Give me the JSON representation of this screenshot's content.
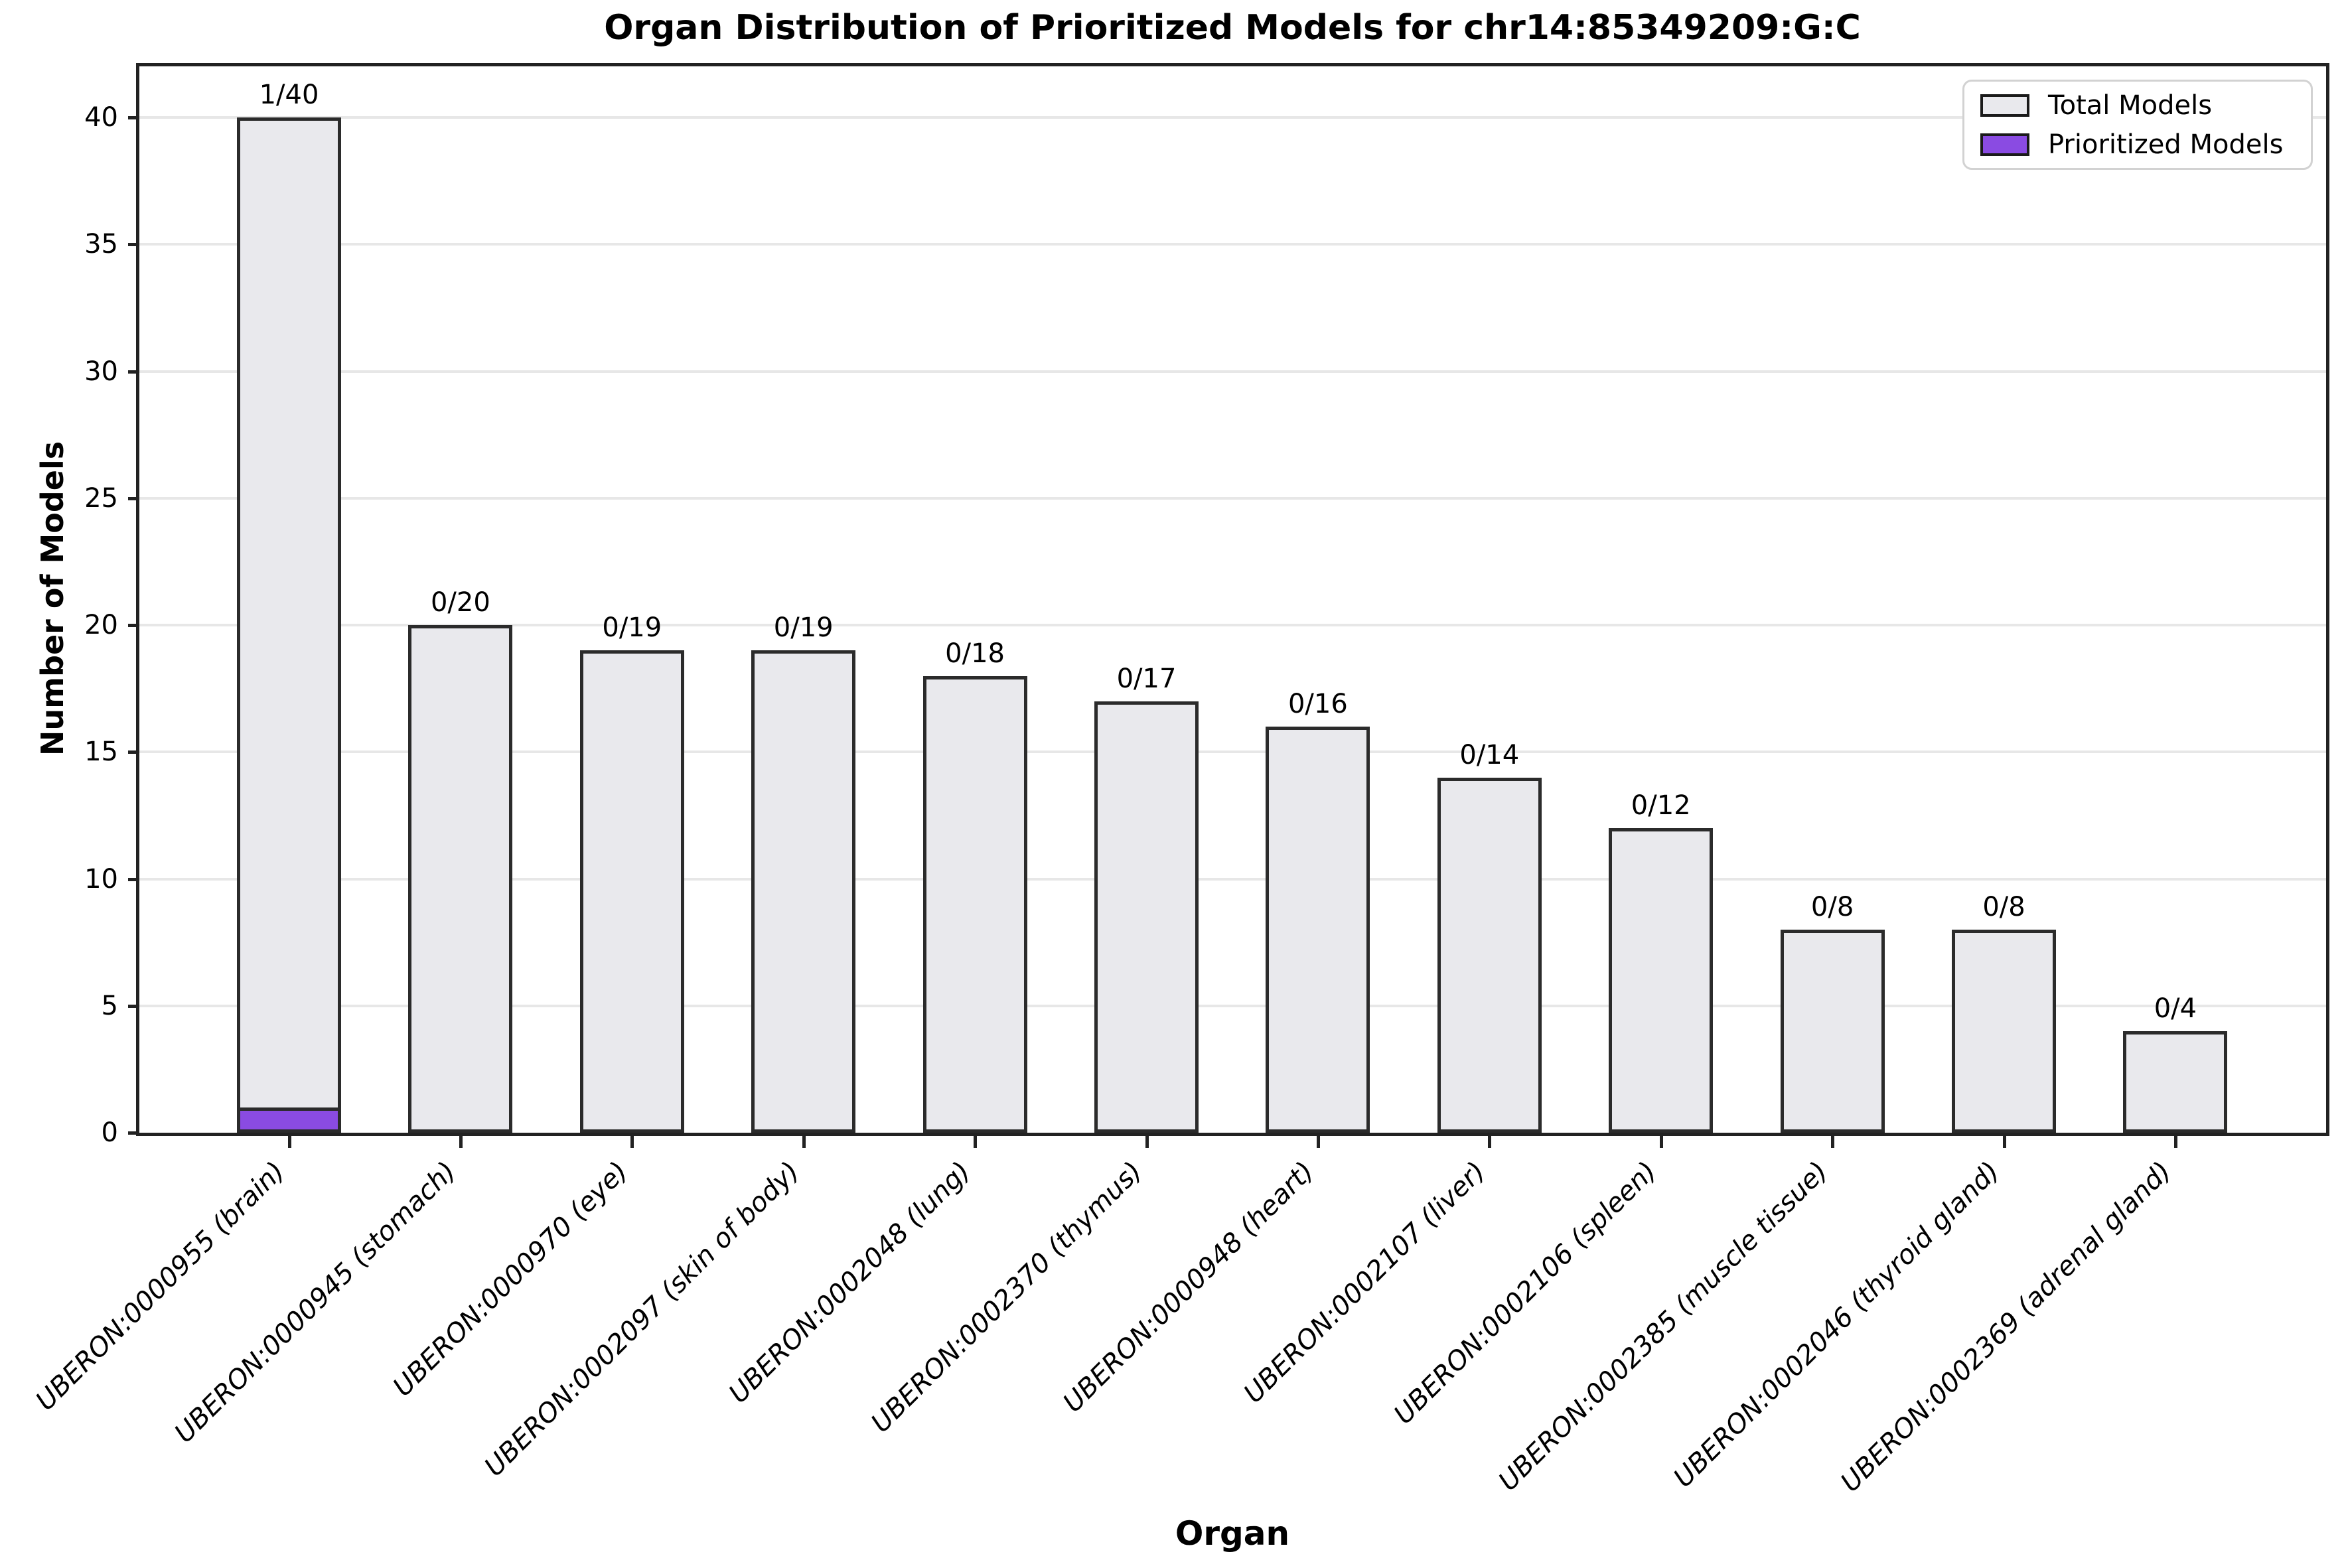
{
  "chart_data": {
    "type": "bar",
    "title": "Organ Distribution of Prioritized Models for chr14:85349209:G:C",
    "xlabel": "Organ",
    "ylabel": "Number of Models",
    "ylim": [
      0,
      42.1
    ],
    "yticks": [
      0,
      5,
      10,
      15,
      20,
      25,
      30,
      35,
      40
    ],
    "grid": "horizontal",
    "legend_position": "upper right",
    "categories": [
      "UBERON:0000955 (brain)",
      "UBERON:0000945 (stomach)",
      "UBERON:0000970 (eye)",
      "UBERON:0002097 (skin of body)",
      "UBERON:0002048 (lung)",
      "UBERON:0002370 (thymus)",
      "UBERON:0000948 (heart)",
      "UBERON:0002107 (liver)",
      "UBERON:0002106 (spleen)",
      "UBERON:0002385 (muscle tissue)",
      "UBERON:0002046 (thyroid gland)",
      "UBERON:0002369 (adrenal gland)"
    ],
    "series": [
      {
        "name": "Total Models",
        "color": "#e9e9ed",
        "values": [
          40,
          20,
          19,
          19,
          18,
          17,
          16,
          14,
          12,
          8,
          8,
          4
        ]
      },
      {
        "name": "Prioritized Models",
        "color": "#8a4be2",
        "values": [
          1,
          0,
          0,
          0,
          0,
          0,
          0,
          0,
          0,
          0,
          0,
          0
        ]
      }
    ],
    "bar_labels": [
      "1/40",
      "0/20",
      "0/19",
      "0/19",
      "0/18",
      "0/17",
      "0/16",
      "0/14",
      "0/12",
      "0/8",
      "0/8",
      "0/4"
    ]
  },
  "colors": {
    "background": "#ffffff",
    "bar_edge": "#2b2b2b",
    "spine": "#222222",
    "gridline": "#e7e7e7",
    "legend_border": "#d2d2d2",
    "total_fill": "#e9e9ed",
    "prioritized_fill": "#8a4be2",
    "text": "#000000"
  }
}
